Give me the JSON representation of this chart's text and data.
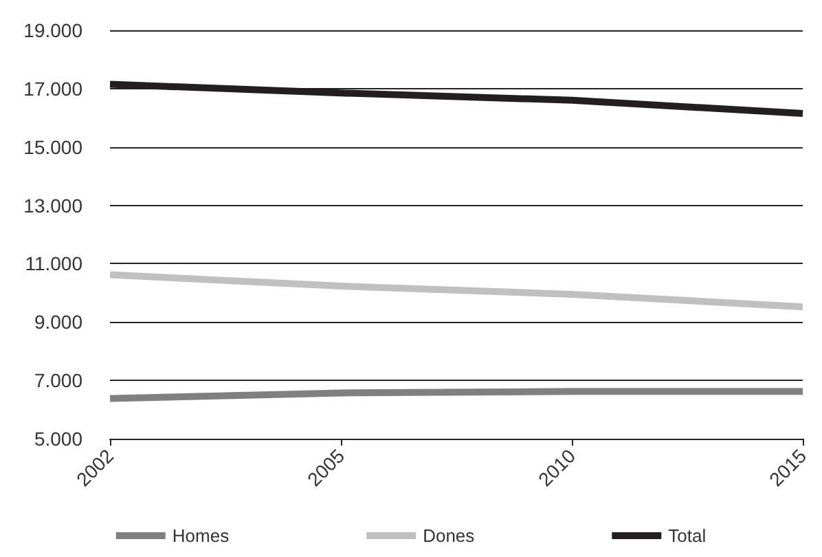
{
  "chart_data": {
    "type": "line",
    "categories": [
      "2002",
      "2005",
      "2010",
      "2015"
    ],
    "series": [
      {
        "name": "Homes",
        "color": "#808080",
        "values": [
          6380,
          6570,
          6620,
          6620
        ]
      },
      {
        "name": "Dones",
        "color": "#c0c0c0",
        "values": [
          10620,
          10230,
          9950,
          9520
        ]
      },
      {
        "name": "Total",
        "color": "#231f20",
        "values": [
          17150,
          16850,
          16600,
          16150
        ]
      }
    ],
    "ylim": [
      5000,
      19000
    ],
    "yticks": [
      {
        "value": 5000,
        "label": "5.000"
      },
      {
        "value": 7000,
        "label": "7.000"
      },
      {
        "value": 9000,
        "label": "9.000"
      },
      {
        "value": 11000,
        "label": "11.000"
      },
      {
        "value": 13000,
        "label": "13.000"
      },
      {
        "value": 15000,
        "label": "15.000"
      },
      {
        "value": 17000,
        "label": "17.000"
      },
      {
        "value": 19000,
        "label": "19.000"
      }
    ],
    "grid": "y",
    "legend": "bottom",
    "marker": "none",
    "line_style": "solid"
  }
}
